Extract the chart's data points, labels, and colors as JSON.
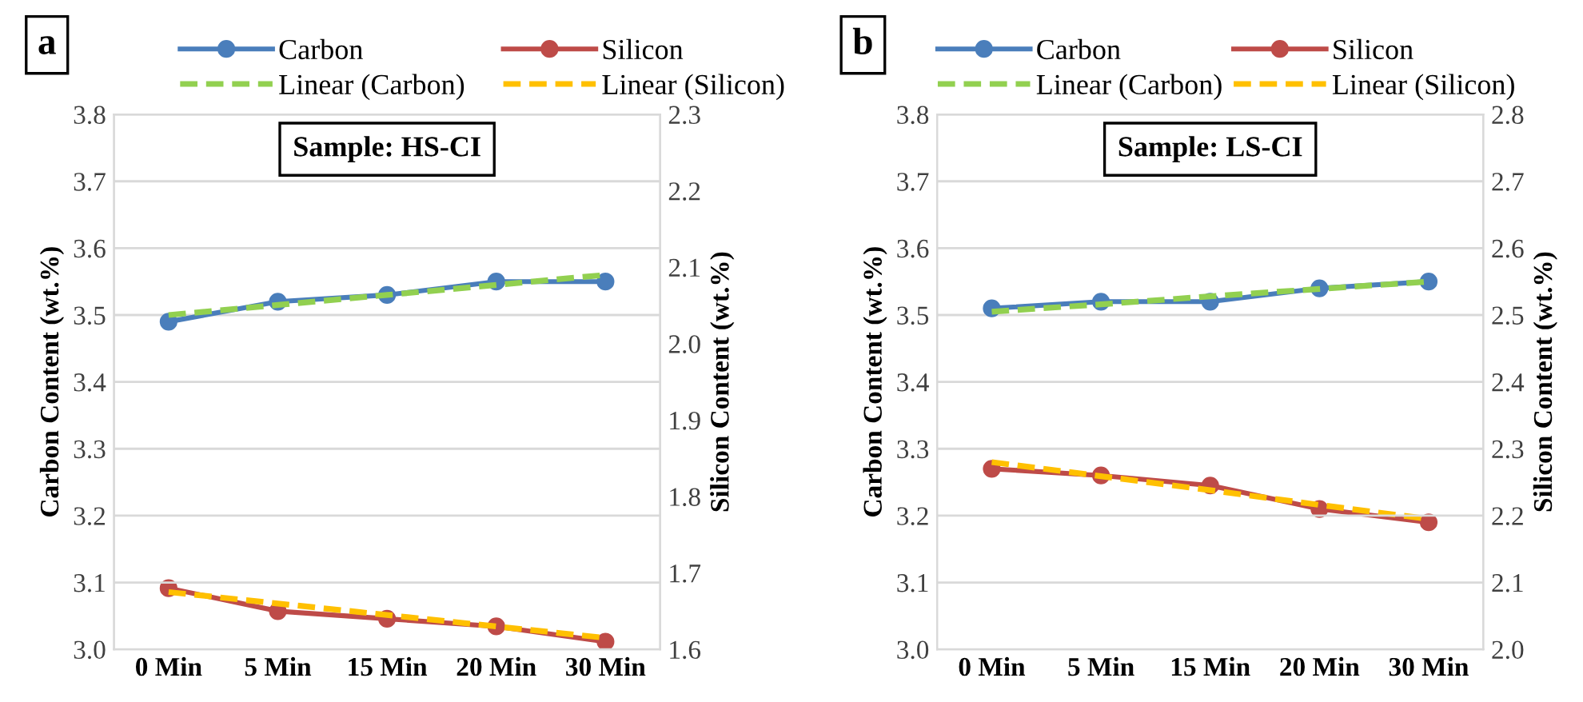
{
  "chart_data": [
    {
      "type": "line",
      "title": "Sample: HS-CI",
      "annotations": [
        "a"
      ],
      "xlabel": null,
      "ylabel": "Carbon Content (wt.%)",
      "y2label": "Silicon Content (wt.%)",
      "categories": [
        "0 Min",
        "5 Min",
        "15 Min",
        "20 Min",
        "30 Min"
      ],
      "series": [
        {
          "name": "Carbon",
          "color": "#4a7ebb",
          "values": [
            3.49,
            3.52,
            3.53,
            3.55,
            3.55
          ],
          "marker": "circle",
          "line_style": "solid"
        },
        {
          "name": "Silicon",
          "color": "#be4b48",
          "values": [
            1.68,
            1.65,
            1.64,
            1.63,
            1.61
          ],
          "axis": "y2",
          "marker": "circle",
          "line_style": "solid"
        },
        {
          "name": "Linear (Carbon)",
          "color": "#92d050",
          "values": [
            3.5,
            3.515,
            3.53,
            3.545,
            3.56
          ],
          "marker": "none",
          "line_style": "dashed"
        },
        {
          "name": "Linear (Silicon)",
          "color": "#ffc000",
          "values": [
            1.675,
            1.66,
            1.645,
            1.63,
            1.615
          ],
          "axis": "y2",
          "marker": "none",
          "line_style": "dashed"
        }
      ],
      "ylim": [
        3.0,
        3.8
      ],
      "yticks": [
        {
          "value": 3.0,
          "label": "3.0"
        },
        {
          "value": 3.1,
          "label": "3.1"
        },
        {
          "value": 3.2,
          "label": "3.2"
        },
        {
          "value": 3.3,
          "label": "3.3"
        },
        {
          "value": 3.4,
          "label": "3.4"
        },
        {
          "value": 3.5,
          "label": "3.5"
        },
        {
          "value": 3.6,
          "label": "3.6"
        },
        {
          "value": 3.7,
          "label": "3.7"
        },
        {
          "value": 3.8,
          "label": "3.8"
        }
      ],
      "y2lim": [
        1.6,
        2.3
      ],
      "y2ticks": [
        {
          "value": 1.6,
          "label": "1.6"
        },
        {
          "value": 1.7,
          "label": "1.7"
        },
        {
          "value": 1.8,
          "label": "1.8"
        },
        {
          "value": 1.9,
          "label": "1.9"
        },
        {
          "value": 2.0,
          "label": "2.0"
        },
        {
          "value": 2.1,
          "label": "2.1"
        },
        {
          "value": 2.2,
          "label": "2.2"
        },
        {
          "value": 2.3,
          "label": "2.3"
        }
      ],
      "grid": "y",
      "legend": "top"
    },
    {
      "type": "line",
      "title": "Sample: LS-CI",
      "annotations": [
        "b"
      ],
      "ylabel": "Carbon Content (wt.%)",
      "y2label": "Silicon Content (wt.%)",
      "categories": [
        "0 Min",
        "5 Min",
        "15 Min",
        "20 Min",
        "30 Min"
      ],
      "series": [
        {
          "name": "Carbon",
          "color": "#4a7ebb",
          "values": [
            3.51,
            3.52,
            3.52,
            3.54,
            3.55
          ],
          "marker": "circle",
          "line_style": "solid"
        },
        {
          "name": "Silicon",
          "color": "#be4b48",
          "values": [
            2.27,
            2.26,
            2.245,
            2.21,
            2.19
          ],
          "axis": "y2",
          "marker": "circle",
          "line_style": "solid"
        },
        {
          "name": "Linear (Carbon)",
          "color": "#92d050",
          "values": [
            3.505,
            3.516,
            3.528,
            3.539,
            3.55
          ],
          "marker": "none",
          "line_style": "dashed"
        },
        {
          "name": "Linear (Silicon)",
          "color": "#ffc000",
          "values": [
            2.28,
            2.259,
            2.238,
            2.216,
            2.195
          ],
          "axis": "y2",
          "marker": "none",
          "line_style": "dashed"
        }
      ],
      "ylim": [
        3.0,
        3.8
      ],
      "yticks": [
        {
          "value": 3.0,
          "label": "3.0"
        },
        {
          "value": 3.1,
          "label": "3.1"
        },
        {
          "value": 3.2,
          "label": "3.2"
        },
        {
          "value": 3.3,
          "label": "3.3"
        },
        {
          "value": 3.4,
          "label": "3.4"
        },
        {
          "value": 3.5,
          "label": "3.5"
        },
        {
          "value": 3.6,
          "label": "3.6"
        },
        {
          "value": 3.7,
          "label": "3.7"
        },
        {
          "value": 3.8,
          "label": "3.8"
        }
      ],
      "y2lim": [
        2.0,
        2.8
      ],
      "y2ticks": [
        {
          "value": 2.0,
          "label": "2.0"
        },
        {
          "value": 2.1,
          "label": "2.1"
        },
        {
          "value": 2.2,
          "label": "2.2"
        },
        {
          "value": 2.3,
          "label": "2.3"
        },
        {
          "value": 2.4,
          "label": "2.4"
        },
        {
          "value": 2.5,
          "label": "2.5"
        },
        {
          "value": 2.6,
          "label": "2.6"
        },
        {
          "value": 2.7,
          "label": "2.7"
        },
        {
          "value": 2.8,
          "label": "2.8"
        }
      ],
      "grid": "y",
      "legend": "top"
    }
  ]
}
